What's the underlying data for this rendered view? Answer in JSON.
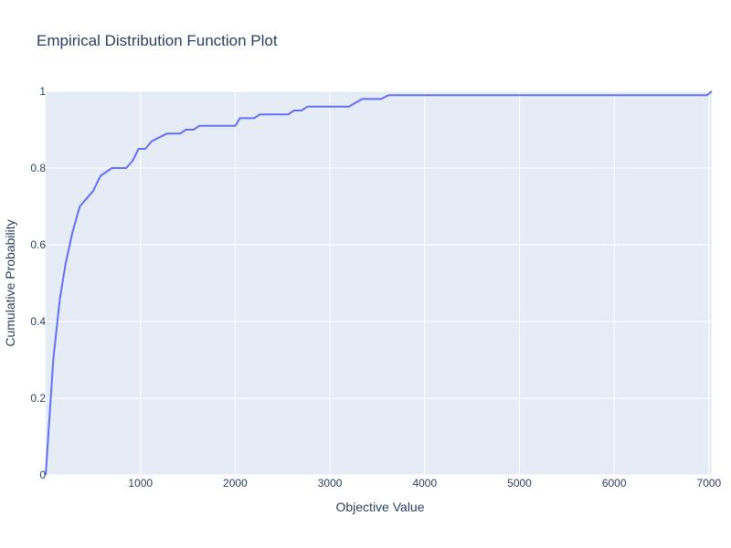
{
  "chart_data": {
    "type": "line",
    "title": "Empirical Distribution Function Plot",
    "xlabel": "Objective Value",
    "ylabel": "Cumulative Probability",
    "xlim": [
      0,
      7030
    ],
    "ylim": [
      0,
      1
    ],
    "x_ticks": [
      1000,
      2000,
      3000,
      4000,
      5000,
      6000,
      7000
    ],
    "x_tick_labels": [
      "1000",
      "2000",
      "3000",
      "4000",
      "5000",
      "6000",
      "7000"
    ],
    "y_ticks": [
      0,
      0.2,
      0.4,
      0.6,
      0.8,
      1
    ],
    "y_tick_labels": [
      "0",
      "0.2",
      "0.4",
      "0.6",
      "0.8",
      "1"
    ],
    "grid": true,
    "plot_background": "#e5ecf6",
    "grid_color": "#ffffff",
    "series": [
      {
        "color": "#636efa",
        "x": [
          0,
          80,
          150,
          210,
          280,
          360,
          500,
          580,
          700,
          850,
          920,
          980,
          1050,
          1120,
          1280,
          1420,
          1480,
          1560,
          1620,
          2000,
          2050,
          2200,
          2260,
          2560,
          2620,
          2700,
          2760,
          3200,
          3340,
          3540,
          3620,
          6980,
          7030
        ],
        "y": [
          0,
          0.3,
          0.46,
          0.55,
          0.63,
          0.7,
          0.74,
          0.78,
          0.8,
          0.8,
          0.82,
          0.85,
          0.85,
          0.87,
          0.89,
          0.89,
          0.9,
          0.9,
          0.91,
          0.91,
          0.93,
          0.93,
          0.94,
          0.94,
          0.95,
          0.95,
          0.96,
          0.96,
          0.98,
          0.98,
          0.99,
          0.99,
          1.0
        ]
      }
    ]
  }
}
